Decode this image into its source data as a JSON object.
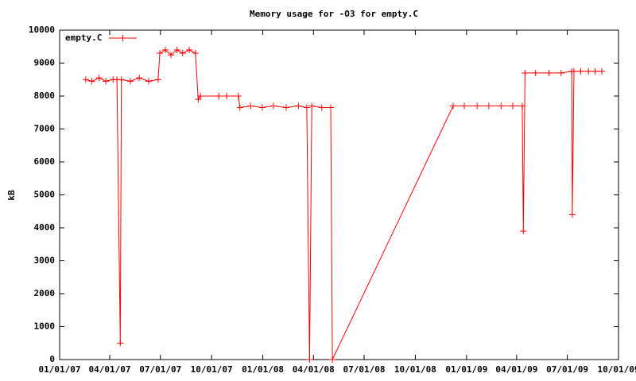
{
  "chart_data": {
    "type": "line",
    "title": "Memory usage for -O3 for empty.C",
    "ylabel": "kB",
    "x": [
      "2007-02-17",
      "2007-02-28",
      "2007-03-13",
      "2007-03-25",
      "2007-04-07",
      "2007-04-14",
      "2007-04-20",
      "2007-04-22",
      "2007-05-08",
      "2007-05-24",
      "2007-06-10",
      "2007-06-27",
      "2007-06-30",
      "2007-07-10",
      "2007-07-20",
      "2007-07-31",
      "2007-08-10",
      "2007-08-22",
      "2007-09-02",
      "2007-09-07",
      "2007-09-11",
      "2007-10-14",
      "2007-10-28",
      "2007-11-18",
      "2007-11-21",
      "2007-12-10",
      "2007-12-31",
      "2008-01-20",
      "2008-02-12",
      "2008-03-05",
      "2008-03-20",
      "2008-03-25",
      "2008-03-29",
      "2008-04-16",
      "2008-05-02",
      "2008-05-05",
      "2008-12-08",
      "2008-12-28",
      "2009-01-20",
      "2009-02-10",
      "2009-03-04",
      "2009-03-25",
      "2009-04-11",
      "2009-04-13",
      "2009-04-16",
      "2009-05-05",
      "2009-05-29",
      "2009-06-20",
      "2009-07-09",
      "2009-07-10",
      "2009-07-13",
      "2009-07-25",
      "2009-08-08",
      "2009-08-20",
      "2009-09-01"
    ],
    "series": [
      {
        "name": "empty.C",
        "color": "#ff0000",
        "values": [
          8500,
          8450,
          8550,
          8450,
          8500,
          8500,
          500,
          8500,
          8450,
          8550,
          8450,
          8500,
          9300,
          9400,
          9250,
          9400,
          9300,
          9400,
          9300,
          7900,
          8000,
          8000,
          8000,
          8000,
          7650,
          7700,
          7650,
          7700,
          7650,
          7700,
          7650,
          0,
          7700,
          7650,
          7650,
          0,
          7700,
          7700,
          7700,
          7700,
          7700,
          7700,
          7700,
          3900,
          8700,
          8700,
          8700,
          8700,
          8750,
          4400,
          8750,
          8750,
          8750,
          8750,
          8750
        ]
      }
    ],
    "xlim": [
      "2007-01-01",
      "2009-10-01"
    ],
    "xticks": [
      {
        "value": "2007-01-01",
        "label": "01/01/07"
      },
      {
        "value": "2007-04-01",
        "label": "04/01/07"
      },
      {
        "value": "2007-07-01",
        "label": "07/01/07"
      },
      {
        "value": "2007-10-01",
        "label": "10/01/07"
      },
      {
        "value": "2008-01-01",
        "label": "01/01/08"
      },
      {
        "value": "2008-04-01",
        "label": "04/01/08"
      },
      {
        "value": "2008-07-01",
        "label": "07/01/08"
      },
      {
        "value": "2008-10-01",
        "label": "10/01/08"
      },
      {
        "value": "2009-01-01",
        "label": "01/01/09"
      },
      {
        "value": "2009-04-01",
        "label": "04/01/09"
      },
      {
        "value": "2009-07-01",
        "label": "07/01/09"
      },
      {
        "value": "2009-10-01",
        "label": "10/01/09"
      }
    ],
    "ylim": [
      0,
      10000
    ],
    "yticks": [
      0,
      1000,
      2000,
      3000,
      4000,
      5000,
      6000,
      7000,
      8000,
      9000,
      10000
    ],
    "grid": false,
    "legend": "top-left"
  }
}
